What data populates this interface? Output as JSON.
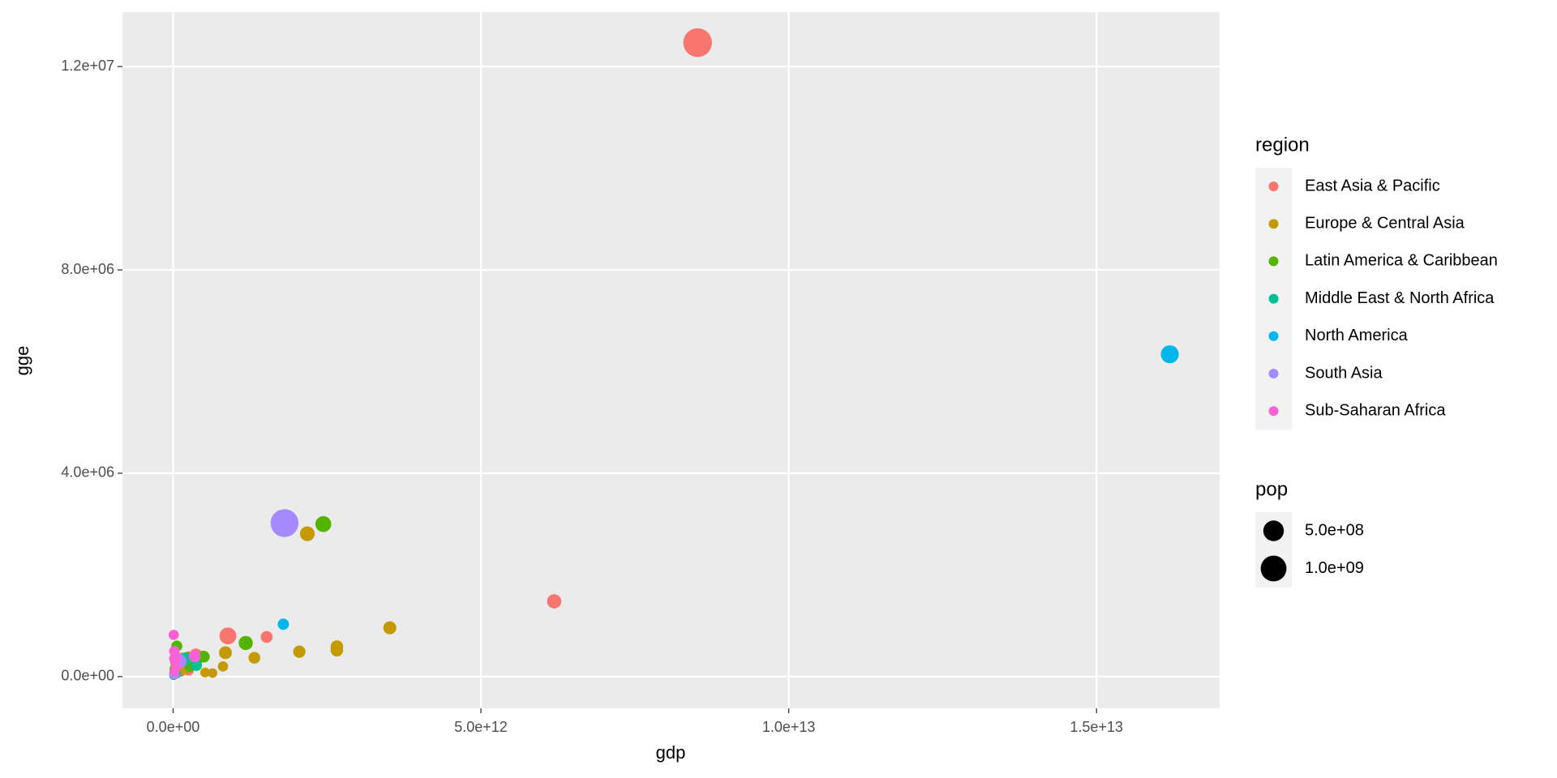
{
  "chart_data": {
    "type": "scatter",
    "x_label": "gdp",
    "y_label": "gge",
    "xlim": [
      -823000000000.0,
      17000000000000.0
    ],
    "ylim": [
      -624000.0,
      13070000.0
    ],
    "xticks": [
      {
        "value": 0,
        "label": "0.0e+00"
      },
      {
        "value": 5000000000000.0,
        "label": "5.0e+12"
      },
      {
        "value": 10000000000000.0,
        "label": "1.0e+13"
      },
      {
        "value": 15000000000000.0,
        "label": "1.5e+13"
      }
    ],
    "yticks": [
      {
        "value": 0,
        "label": "0.0e+00"
      },
      {
        "value": 4000000.0,
        "label": "4.0e+06"
      },
      {
        "value": 8000000.0,
        "label": "8.0e+06"
      },
      {
        "value": 12000000.0,
        "label": "1.2e+07"
      }
    ],
    "grid": true,
    "color_legend_title": "region",
    "size_legend_title": "pop",
    "size_legend": [
      {
        "value": 500000000.0,
        "label": "5.0e+08"
      },
      {
        "value": 1000000000.0,
        "label": "1.0e+09"
      }
    ],
    "series": [
      {
        "name": "East Asia & Pacific",
        "color": "#F8766D",
        "x": [
          8520000000000.0,
          6190000000000.0,
          1520000000000.0,
          890000000000.0,
          370000000000.0,
          300000000000.0,
          250000000000.0,
          150000000000.0,
          120000000000.0,
          60000000000.0,
          30000000000.0
        ],
        "y": [
          12470000.0,
          1480000.0,
          780000.0,
          800000.0,
          420000.0,
          300000.0,
          120000.0,
          350000.0,
          100000.0,
          280000.0,
          50000.0
        ],
        "size": [
          1350000000.0,
          127000000.0,
          50000000.0,
          250000000.0,
          90000000.0,
          30000000.0,
          20000000.0,
          60000000.0,
          23000000.0,
          90000000.0,
          5000000.0
        ]
      },
      {
        "name": "Europe & Central Asia",
        "color": "#C49A00",
        "x": [
          2180000000000.0,
          3520000000000.0,
          2660000000000.0,
          2660000000000.0,
          2050000000000.0,
          1320000000000.0,
          850000000000.0,
          810000000000.0,
          640000000000.0,
          520000000000.0,
          490000000000.0,
          250000000000.0,
          200000000000.0,
          100000000000.0,
          40000000000.0
        ],
        "y": [
          2810000.0,
          960000.0,
          590000.0,
          520000.0,
          490000.0,
          370000.0,
          470000.0,
          200000.0,
          70000.0,
          80000.0,
          400000.0,
          380000.0,
          150000.0,
          100000.0,
          50000.0
        ],
        "size": [
          143000000.0,
          81000000.0,
          64000000.0,
          66000000.0,
          60000000.0,
          46000000.0,
          75000000.0,
          17000000.0,
          8000000.0,
          10000000.0,
          38000000.0,
          45000000.0,
          10000000.0,
          5000000.0,
          3000000.0
        ]
      },
      {
        "name": "Latin America & Caribbean",
        "color": "#53B400",
        "x": [
          2440000000000.0,
          1180000000000.0,
          500000000000.0,
          370000000000.0,
          270000000000.0,
          60000000000.0,
          20000000000.0
        ],
        "y": [
          3000000.0,
          660000.0,
          390000.0,
          250000.0,
          200000.0,
          600000.0,
          150000.0
        ],
        "size": [
          200000000.0,
          120000000.0,
          43000000.0,
          47000000.0,
          30000000.0,
          30000000.0,
          10000000.0
        ]
      },
      {
        "name": "Middle East & North Africa",
        "color": "#00C094",
        "x": [
          380000000000.0,
          200000000000.0,
          50000000000.0,
          30000000000.0,
          10000000000.0
        ],
        "y": [
          220000.0,
          350000.0,
          50000.0,
          100000.0,
          20000.0
        ],
        "size": [
          30000000.0,
          77000000.0,
          8000000.0,
          4000000.0,
          3000000.0
        ]
      },
      {
        "name": "North America",
        "color": "#00B6EB",
        "x": [
          16190000000000.0,
          1790000000000.0
        ],
        "y": [
          6340000.0,
          1030000.0
        ],
        "size": [
          316000000.0,
          35000000.0
        ]
      },
      {
        "name": "South Asia",
        "color": "#A58AFF",
        "x": [
          1810000000000.0,
          100000000000.0,
          20000000000.0
        ],
        "y": [
          3020000.0,
          300000.0,
          50000.0
        ],
        "size": [
          1250000000.0,
          150000000.0,
          20000000.0
        ]
      },
      {
        "name": "Sub-Saharan Africa",
        "color": "#FB61D7",
        "x": [
          10000000000.0,
          20000000000.0,
          30000000000.0,
          20000000000.0,
          350000000000.0,
          50000000000.0
        ],
        "y": [
          820000.0,
          500000.0,
          350000.0,
          100000.0,
          400000.0,
          200000.0
        ],
        "size": [
          17000000.0,
          20000000.0,
          45000000.0,
          12000000.0,
          53000000.0,
          10000000.0
        ]
      }
    ]
  }
}
